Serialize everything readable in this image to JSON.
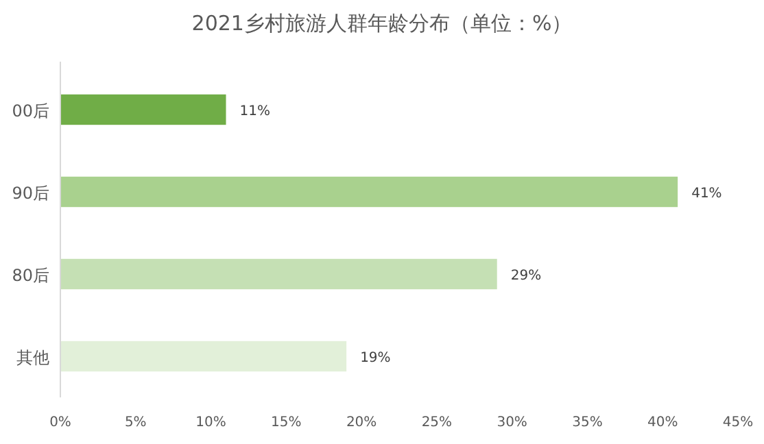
{
  "chart_data": {
    "type": "bar",
    "orientation": "horizontal",
    "title": "2021乡村旅游人群年龄分布（单位：%）",
    "categories": [
      "00后",
      "90后",
      "80后",
      "其他"
    ],
    "values": [
      11,
      41,
      29,
      19
    ],
    "colors": [
      "#70ad47",
      "#a9d18e",
      "#c5e0b4",
      "#e2f0d9"
    ],
    "value_labels": [
      "11%",
      "41%",
      "29%",
      "19%"
    ],
    "xlim": [
      0,
      45
    ],
    "xticks": [
      {
        "value": 0,
        "label": "0%"
      },
      {
        "value": 5,
        "label": "5%"
      },
      {
        "value": 10,
        "label": "10%"
      },
      {
        "value": 15,
        "label": "15%"
      },
      {
        "value": 20,
        "label": "20%"
      },
      {
        "value": 25,
        "label": "25%"
      },
      {
        "value": 30,
        "label": "30%"
      },
      {
        "value": 35,
        "label": "35%"
      },
      {
        "value": 40,
        "label": "40%"
      },
      {
        "value": 45,
        "label": "45%"
      }
    ]
  }
}
